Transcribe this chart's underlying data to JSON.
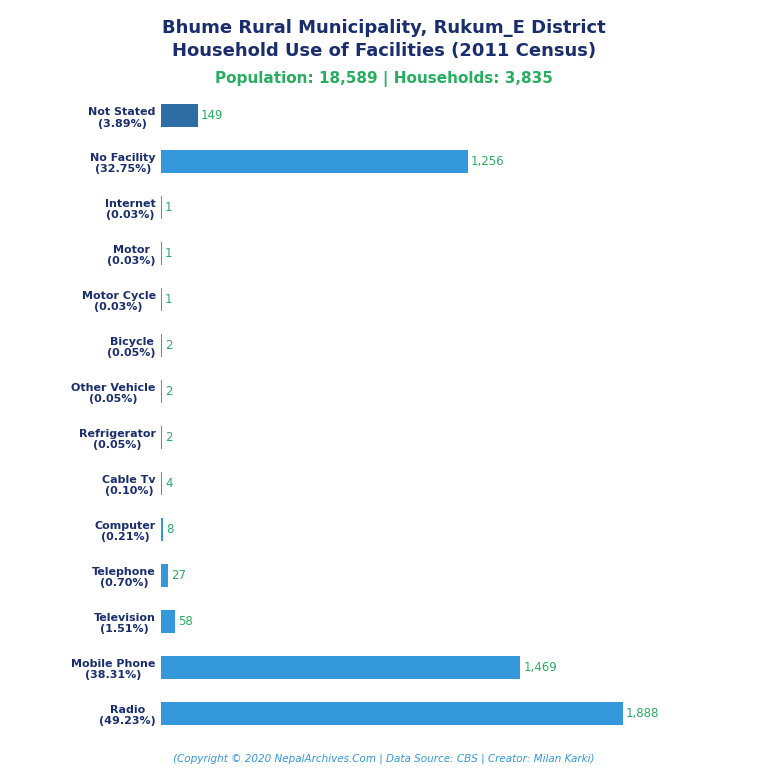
{
  "title_line1": "Bhume Rural Municipality, Rukum_E District",
  "title_line2": "Household Use of Facilities (2011 Census)",
  "subtitle": "Population: 18,589 | Households: 3,835",
  "footer": "(Copyright © 2020 NepalArchives.Com | Data Source: CBS | Creator: Milan Karki)",
  "categories": [
    "Not Stated\n(3.89%)",
    "No Facility\n(32.75%)",
    "Internet\n(0.03%)",
    "Motor\n(0.03%)",
    "Motor Cycle\n(0.03%)",
    "Bicycle\n(0.05%)",
    "Other Vehicle\n(0.05%)",
    "Refrigerator\n(0.05%)",
    "Cable Tv\n(0.10%)",
    "Computer\n(0.21%)",
    "Telephone\n(0.70%)",
    "Television\n(1.51%)",
    "Mobile Phone\n(38.31%)",
    "Radio\n(49.23%)"
  ],
  "values": [
    149,
    1256,
    1,
    1,
    1,
    2,
    2,
    2,
    4,
    8,
    27,
    58,
    1469,
    1888
  ],
  "bar_colors": [
    "#2e6da4",
    "#3498db",
    "#3498db",
    "#3498db",
    "#3498db",
    "#3498db",
    "#3498db",
    "#3498db",
    "#3498db",
    "#3498db",
    "#3498db",
    "#3498db",
    "#3498db",
    "#3498db"
  ],
  "title_color": "#1a2e6e",
  "subtitle_color": "#27ae60",
  "footer_color": "#3498db",
  "value_color": "#27ae60",
  "label_color": "#1a2e6e",
  "background_color": "#ffffff",
  "xlim": [
    0,
    2200
  ]
}
